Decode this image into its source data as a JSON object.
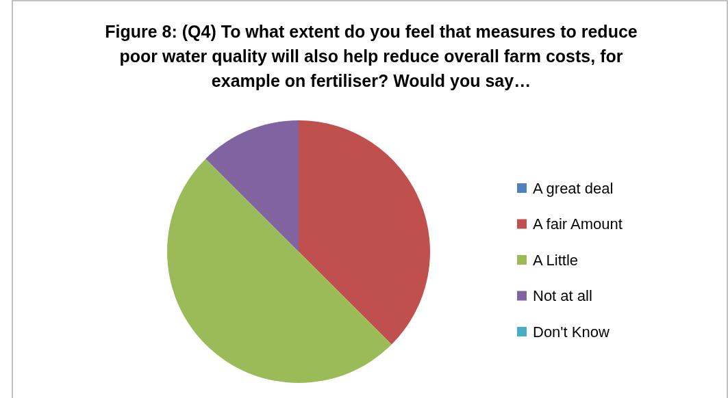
{
  "chart_data": {
    "type": "pie",
    "title": "Figure 8: (Q4) To what extent do you feel that measures to reduce poor water quality will also help reduce overall farm costs, for example on fertiliser? Would you say…",
    "categories": [
      "A great deal",
      "A fair Amount",
      "A Little",
      "Not at all",
      "Don't Know"
    ],
    "values": [
      0,
      37.5,
      50,
      12.5,
      0
    ],
    "colors": [
      "#4f81bd",
      "#c0504d",
      "#9bbb59",
      "#8064a2",
      "#4bacc6"
    ],
    "legend": "right"
  }
}
